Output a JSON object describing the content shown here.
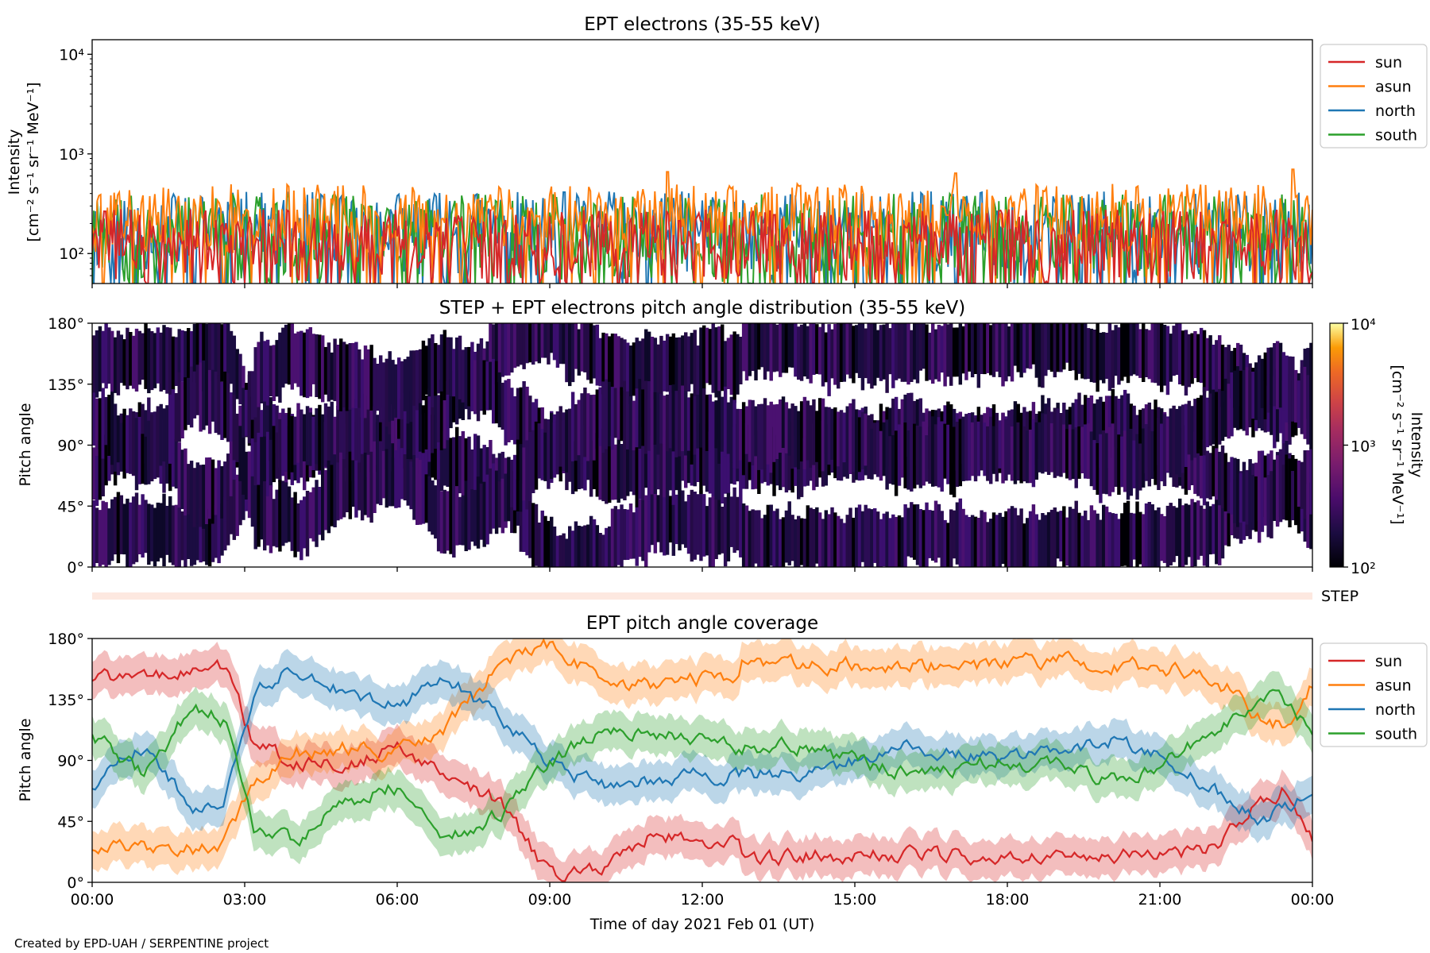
{
  "chart_data": [
    {
      "type": "line",
      "title": "EPT electrons (35-55 keV)",
      "ylabel_lines": [
        "Intensity",
        "[cm⁻² s⁻¹ sr⁻¹ MeV⁻¹]"
      ],
      "yscale": "log",
      "ylim": [
        50,
        14000
      ],
      "yticks": [
        {
          "v": 100,
          "label": "10²"
        },
        {
          "v": 1000,
          "label": "10³"
        },
        {
          "v": 10000,
          "label": "10⁴"
        }
      ],
      "xlim_hours": [
        0,
        24
      ],
      "legend_placement": "outside right",
      "series": [
        {
          "name": "sun",
          "color": "#d62728",
          "typical_range": [
            50,
            280
          ]
        },
        {
          "name": "asun",
          "color": "#ff7f0e",
          "typical_range": [
            100,
            500
          ],
          "peaks": [
            {
              "x": 11.3,
              "y": 660
            },
            {
              "x": 23.6,
              "y": 700
            },
            {
              "x": 17.0,
              "y": 640
            }
          ]
        },
        {
          "name": "north",
          "color": "#1f77b4",
          "typical_range": [
            60,
            420
          ]
        },
        {
          "name": "south",
          "color": "#2ca02c",
          "typical_range": [
            50,
            400
          ]
        }
      ]
    },
    {
      "type": "heatmap",
      "title": "STEP + EPT electrons pitch angle distribution (35-55 keV)",
      "ylabel": "Pitch angle",
      "ylim": [
        0,
        180
      ],
      "yticks": [
        "0°",
        "45°",
        "90°",
        "135°",
        "180°"
      ],
      "xlim_hours": [
        0,
        24
      ],
      "colorbar": {
        "label_lines": [
          "Intensity",
          "[cm⁻² s⁻¹ sr⁻¹ MeV⁻¹]"
        ],
        "scale": "log",
        "range": [
          100,
          10000
        ],
        "ticks": [
          "10²",
          "10³",
          "10⁴"
        ],
        "colormap": "inferno"
      },
      "step_strip_label": "STEP"
    },
    {
      "type": "line",
      "title": "EPT pitch angle coverage",
      "ylabel": "Pitch angle",
      "ylim": [
        0,
        180
      ],
      "yticks": [
        "0°",
        "45°",
        "90°",
        "135°",
        "180°"
      ],
      "xlabel": "Time of day 2021 Feb 01 (UT)",
      "xticks": [
        "00:00",
        "03:00",
        "06:00",
        "09:00",
        "12:00",
        "15:00",
        "18:00",
        "21:00",
        "00:00"
      ],
      "legend_placement": "outside right",
      "band_half_width_deg": 14,
      "series": [
        {
          "name": "sun",
          "color": "#d62728",
          "x": [
            0,
            1,
            2,
            2.6,
            3.2,
            4,
            5,
            6,
            7,
            8,
            9,
            10,
            11,
            12,
            12.7,
            12.8,
            14,
            16,
            18,
            19,
            20,
            21,
            22,
            22.5,
            23,
            23.5,
            24
          ],
          "y": [
            150,
            150,
            155,
            160,
            100,
            90,
            85,
            100,
            75,
            60,
            5,
            12,
            35,
            30,
            30,
            15,
            20,
            20,
            20,
            20,
            20,
            20,
            25,
            40,
            60,
            70,
            35
          ]
        },
        {
          "name": "asun",
          "color": "#ff7f0e",
          "x": [
            0,
            1,
            2,
            2.6,
            3.2,
            4,
            5,
            6,
            7,
            8,
            9,
            10,
            11,
            12,
            12.7,
            12.8,
            14,
            16,
            18,
            19,
            20,
            21,
            22,
            22.5,
            23,
            23.5,
            24
          ],
          "y": [
            25,
            25,
            25,
            30,
            75,
            95,
            100,
            95,
            115,
            160,
            175,
            150,
            145,
            150,
            150,
            165,
            160,
            160,
            160,
            165,
            160,
            160,
            150,
            140,
            120,
            115,
            145
          ]
        },
        {
          "name": "north",
          "color": "#1f77b4",
          "x": [
            0,
            1,
            2,
            2.6,
            3.2,
            4,
            5,
            6,
            7,
            8,
            9,
            10,
            11,
            12,
            12.7,
            12.8,
            14,
            16,
            18,
            19,
            20,
            21,
            22,
            22.5,
            23,
            23.5,
            24
          ],
          "y": [
            70,
            100,
            55,
            60,
            140,
            160,
            140,
            130,
            150,
            120,
            90,
            70,
            75,
            80,
            80,
            80,
            80,
            100,
            90,
            95,
            105,
            95,
            70,
            60,
            45,
            55,
            70
          ]
        },
        {
          "name": "south",
          "color": "#2ca02c",
          "x": [
            0,
            1,
            2,
            2.6,
            3.2,
            4,
            5,
            6,
            7,
            8,
            9,
            10,
            11,
            12,
            12.7,
            12.8,
            14,
            16,
            18,
            19,
            20,
            21,
            22,
            22.5,
            23,
            23.5,
            24
          ],
          "y": [
            110,
            80,
            130,
            120,
            40,
            30,
            60,
            70,
            30,
            50,
            90,
            110,
            110,
            105,
            100,
            100,
            100,
            80,
            90,
            85,
            75,
            85,
            110,
            120,
            140,
            130,
            110
          ]
        }
      ]
    }
  ],
  "footer": "Created by EPD-UAH / SERPENTINE project"
}
